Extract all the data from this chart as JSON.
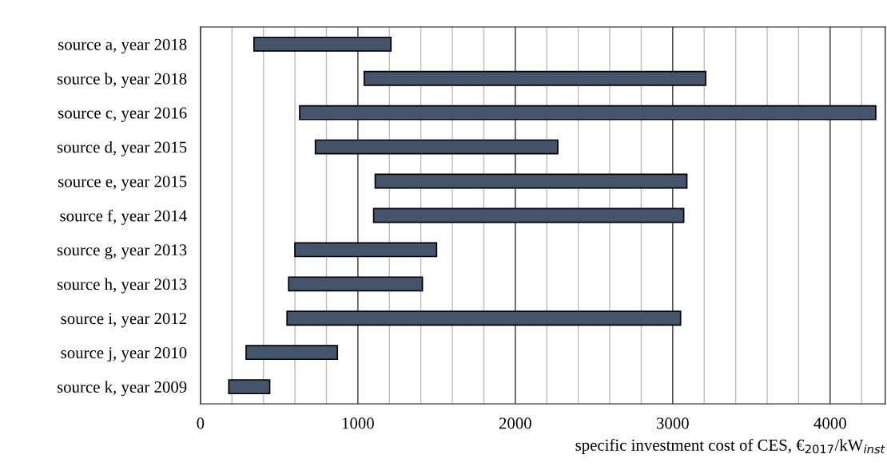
{
  "chart_data": {
    "type": "bar",
    "orientation": "horizontal",
    "xlabel": "specific investment cost of CES, €$_{2017}$/kW$_{inst}$",
    "categories": [
      "source a, year 2018",
      "source b, year 2018",
      "source c, year 2016",
      "source d, year 2015",
      "source e, year 2015",
      "source f, year 2014",
      "source g, year 2013",
      "source h, year 2013",
      "source i, year 2012",
      "source j, year 2010",
      "source k, year 2009"
    ],
    "base": [
      340,
      1040,
      630,
      730,
      1110,
      1100,
      600,
      560,
      550,
      290,
      180
    ],
    "values": [
      870,
      2170,
      3660,
      1540,
      1980,
      1970,
      900,
      850,
      2500,
      580,
      260
    ],
    "color": "#44546a",
    "xlim": [
      0,
      4350
    ],
    "xticks": [
      0,
      {
        "value": 200,
        "label": null
      },
      {
        "value": 400,
        "label": null
      },
      {
        "value": 600,
        "label": null
      },
      {
        "value": 800,
        "label": null
      },
      1000,
      {
        "value": 1200,
        "label": null
      },
      {
        "value": 1400,
        "label": null
      },
      {
        "value": 1600,
        "label": null
      },
      {
        "value": 1800,
        "label": null
      },
      2000,
      {
        "value": 2200,
        "label": null
      },
      {
        "value": 2400,
        "label": null
      },
      {
        "value": 2600,
        "label": null
      },
      {
        "value": 2800,
        "label": null
      },
      3000,
      {
        "value": 3200,
        "label": null
      },
      {
        "value": 3400,
        "label": null
      },
      {
        "value": 3600,
        "label": null
      },
      {
        "value": 3800,
        "label": null
      },
      4000,
      {
        "value": 4200,
        "label": null
      }
    ],
    "grid": "x"
  }
}
